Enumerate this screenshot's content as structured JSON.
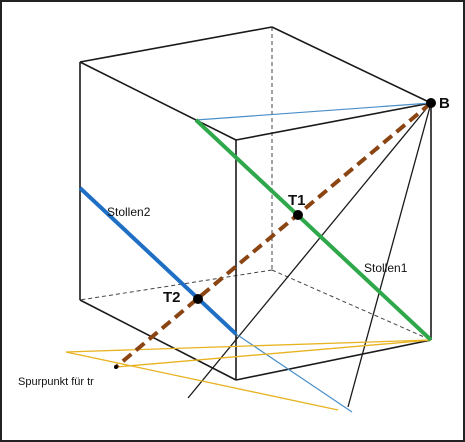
{
  "labels": {
    "point_b": "B",
    "point_t1": "T1",
    "point_t2": "T2",
    "tunnel_1": "Stollen1",
    "tunnel_2": "Stollen2",
    "trace_point": "Spurpunkt für tr"
  },
  "colors": {
    "cube_edges": "#1a1a1a",
    "tunnel_1": "#2ea84a",
    "tunnel_2": "#1f6fc4",
    "connector": "#8b4513",
    "trace_lines": "#e8b320",
    "projection_lines": "#4a8fc9",
    "points": "#000000",
    "border": "#222222"
  }
}
